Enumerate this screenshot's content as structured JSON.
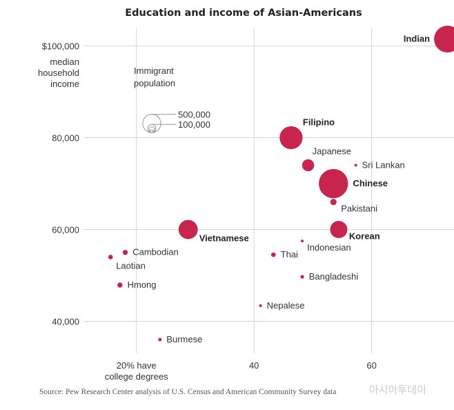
{
  "chart_data": {
    "type": "scatter",
    "title": "Education and income of Asian-Americans",
    "xlabel": [
      "20% have",
      "college degrees"
    ],
    "ylabel": [
      "median",
      "household",
      "income"
    ],
    "xlim": [
      11,
      74
    ],
    "ylim": [
      33000,
      104000
    ],
    "x_ticks": [
      {
        "value": 20,
        "label": ""
      },
      {
        "value": 40,
        "label": "40"
      },
      {
        "value": 60,
        "label": "60"
      }
    ],
    "y_ticks": [
      {
        "value": 100000,
        "label": "$100,000"
      },
      {
        "value": 80000,
        "label": "80,000"
      },
      {
        "value": 60000,
        "label": "60,000"
      },
      {
        "value": 40000,
        "label": "40,000"
      }
    ],
    "grid": true,
    "size_legend": {
      "title": [
        "Immigrant",
        "population"
      ],
      "entries": [
        {
          "label": "500,000",
          "population": 500000
        },
        {
          "label": "100,000",
          "population": 100000
        }
      ],
      "extra_circles": [
        50000,
        10000
      ]
    },
    "accent_color": "#c8254e",
    "points": [
      {
        "name": "Indian",
        "x": 72.9,
        "y": 101500,
        "population": 1100000,
        "bold": true,
        "label_side": "left"
      },
      {
        "name": "Filipino",
        "x": 46.3,
        "y": 80000,
        "population": 800000,
        "bold": true,
        "label_side": "above-right"
      },
      {
        "name": "Japanese",
        "x": 49.2,
        "y": 74000,
        "population": 220000,
        "bold": false,
        "label_side": "above-right"
      },
      {
        "name": "Sri Lankan",
        "x": 57.3,
        "y": 74000,
        "population": 3000,
        "bold": false,
        "label_side": "right"
      },
      {
        "name": "Chinese",
        "x": 53.5,
        "y": 70000,
        "population": 1300000,
        "bold": true,
        "label_side": "right"
      },
      {
        "name": "Pakistani",
        "x": 53.5,
        "y": 66000,
        "population": 60000,
        "bold": false,
        "label_side": "below-right"
      },
      {
        "name": "Korean",
        "x": 54.4,
        "y": 60000,
        "population": 450000,
        "bold": true,
        "label_side": "below-right"
      },
      {
        "name": "Vietnamese",
        "x": 28.8,
        "y": 60000,
        "population": 560000,
        "bold": true,
        "label_side": "below-right"
      },
      {
        "name": "Indonesian",
        "x": 48.2,
        "y": 57500,
        "population": 3500,
        "bold": false,
        "label_side": "below-right"
      },
      {
        "name": "Cambodian",
        "x": 18.1,
        "y": 55000,
        "population": 40000,
        "bold": false,
        "label_side": "right"
      },
      {
        "name": "Laotian",
        "x": 15.6,
        "y": 54000,
        "population": 32000,
        "bold": false,
        "label_side": "below-right"
      },
      {
        "name": "Thai",
        "x": 43.3,
        "y": 54500,
        "population": 32000,
        "bold": false,
        "label_side": "right"
      },
      {
        "name": "Bangladeshi",
        "x": 48.2,
        "y": 49700,
        "population": 20000,
        "bold": false,
        "label_side": "right"
      },
      {
        "name": "Hmong",
        "x": 17.2,
        "y": 47900,
        "population": 40000,
        "bold": false,
        "label_side": "right"
      },
      {
        "name": "Nepalese",
        "x": 41.1,
        "y": 43400,
        "population": 12000,
        "bold": false,
        "label_side": "right"
      },
      {
        "name": "Burmese",
        "x": 24.0,
        "y": 36000,
        "population": 18000,
        "bold": false,
        "label_side": "right"
      }
    ]
  },
  "source": "Source: Pew Research Center analysis of U.S. Census and American Community Survey data",
  "watermark": "아시아투데이"
}
